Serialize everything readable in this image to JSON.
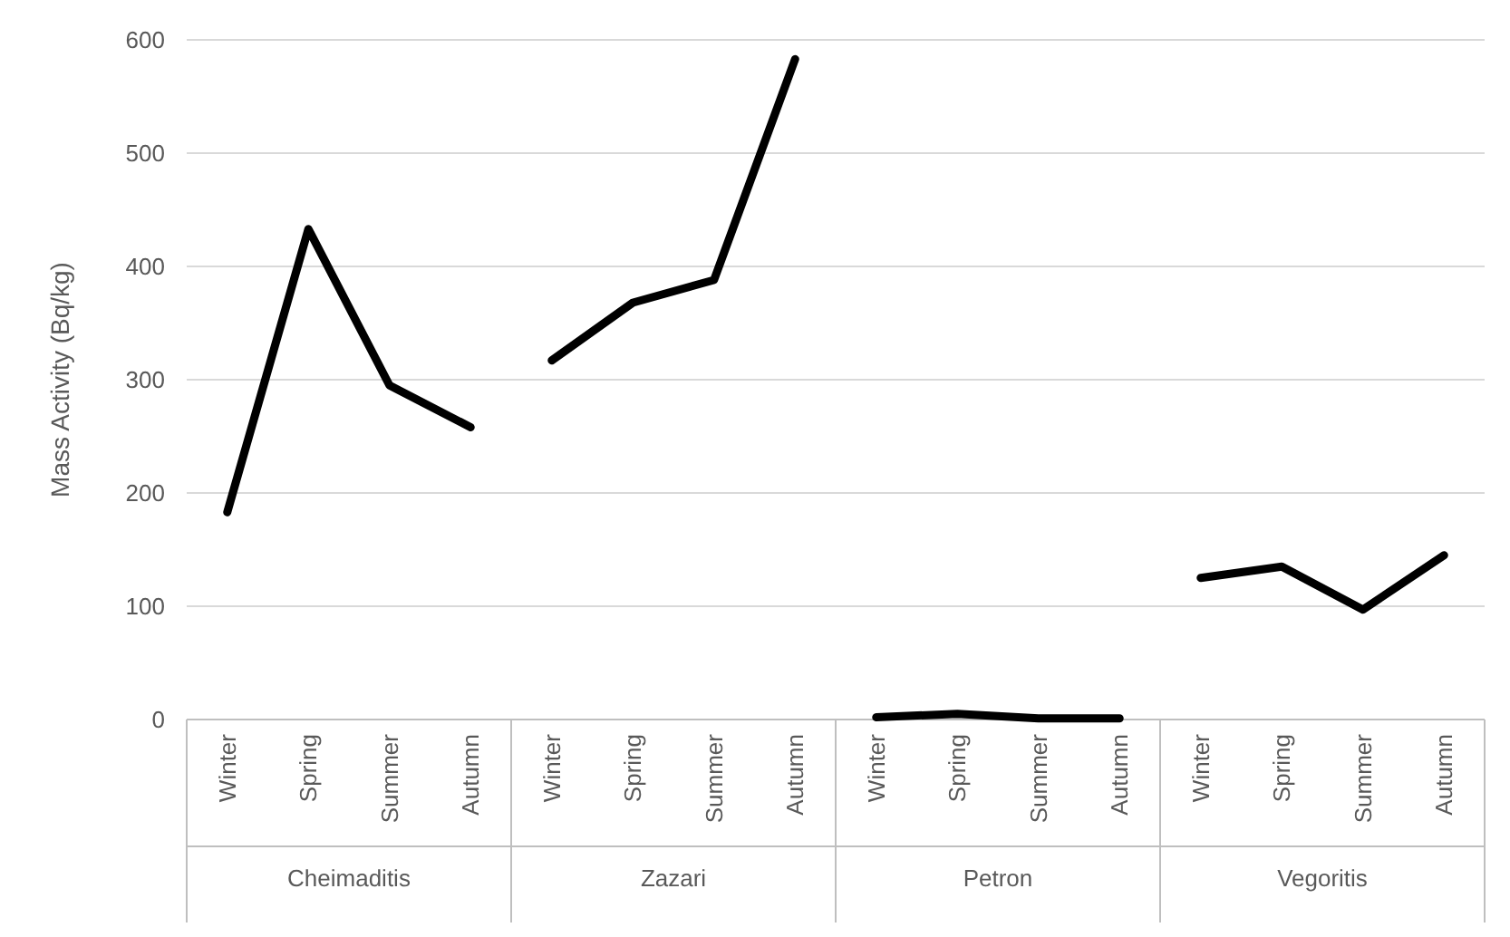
{
  "chart_data": {
    "type": "line",
    "ylabel": "Mass Activity (Bq/kg)",
    "categories": [
      "Winter",
      "Spring",
      "Summer",
      "Autumn",
      "Winter",
      "Spring",
      "Summer",
      "Autumn",
      "Winter",
      "Spring",
      "Summer",
      "Autumn",
      "Winter",
      "Spring",
      "Summer",
      "Autumn"
    ],
    "annotations": [
      "Cheimaditis",
      "Zazari",
      "Petron",
      "Vegoritis"
    ],
    "series": [
      {
        "color": "#000000",
        "values": [
          183,
          433,
          295,
          258,
          null,
          null,
          null,
          null,
          null,
          null,
          null,
          null,
          null,
          null,
          null,
          null
        ]
      },
      {
        "color": "#000000",
        "values": [
          null,
          null,
          null,
          null,
          317,
          368,
          388,
          583,
          null,
          null,
          null,
          null,
          null,
          null,
          null,
          null
        ]
      },
      {
        "color": "#000000",
        "values": [
          null,
          null,
          null,
          null,
          null,
          null,
          null,
          null,
          2,
          5,
          1,
          1,
          null,
          null,
          null,
          null
        ]
      },
      {
        "color": "#000000",
        "values": [
          null,
          null,
          null,
          null,
          null,
          null,
          null,
          null,
          null,
          null,
          null,
          null,
          125,
          135,
          97,
          145
        ]
      }
    ],
    "ylim": [
      0,
      600
    ],
    "yticks": [
      0,
      100,
      200,
      300,
      400,
      500,
      600
    ],
    "grid": "y"
  }
}
